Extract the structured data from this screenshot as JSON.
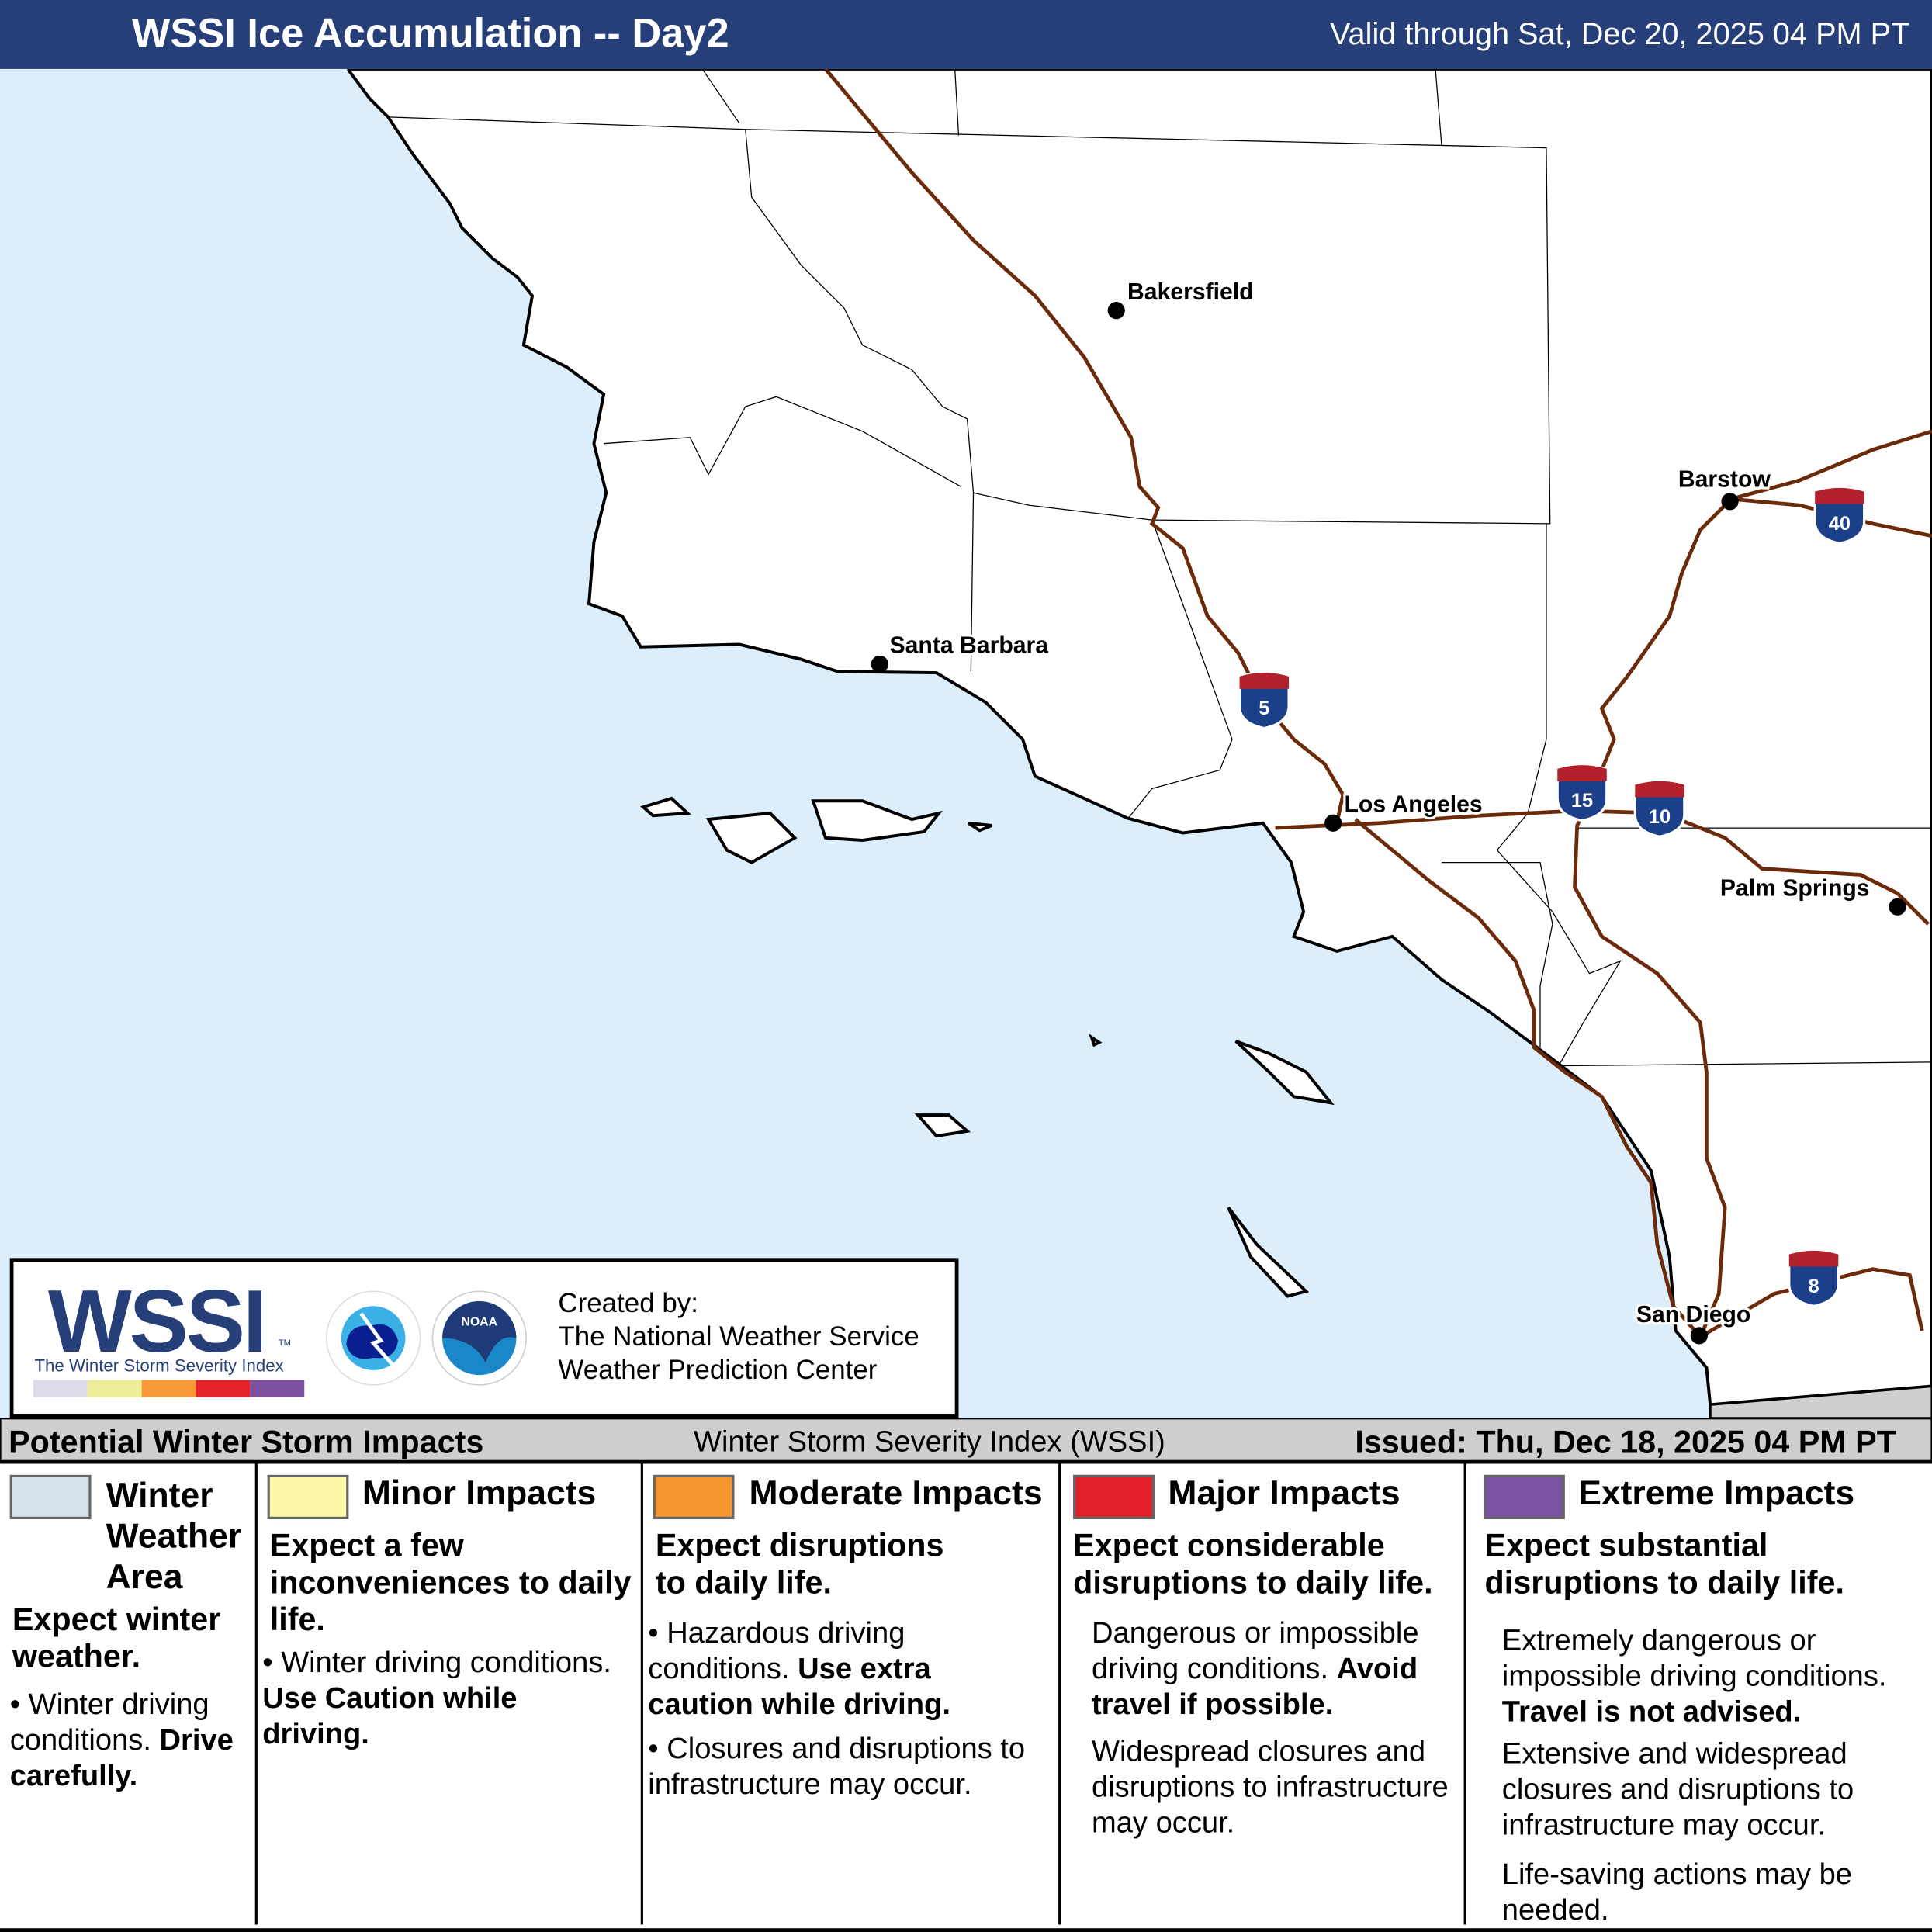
{
  "header": {
    "title": "WSSI Ice Accumulation -- Day2",
    "valid": "Valid through Sat, Dec 20, 2025 04 PM PT"
  },
  "map": {
    "colors": {
      "ocean": "#dcedfb",
      "land": "#ffffff",
      "mexico": "#cfcfcf",
      "interstate": "#6b2a0a"
    },
    "cities": [
      "Bakersfield",
      "Santa Barbara",
      "Los Angeles",
      "Barstow",
      "Palm Springs",
      "San Diego"
    ],
    "interstates": [
      "5",
      "15",
      "10",
      "40",
      "8"
    ]
  },
  "logo": {
    "wssi": "WSSI",
    "tm": "TM",
    "subtitle": "The Winter Storm Severity Index",
    "created": [
      "Created by:",
      "The National Weather Service",
      "Weather Prediction Center"
    ],
    "bar_colors": [
      "#dcdce8",
      "#eeee99",
      "#f79a36",
      "#e4222a",
      "#7b51a0"
    ]
  },
  "band": {
    "left": "Potential Winter Storm Impacts",
    "center": "Winter Storm Severity Index (WSSI)",
    "right": "Issued: Thu, Dec 18, 2025 04 PM PT"
  },
  "legend": [
    {
      "title": "Winter Weather Area",
      "color": "#d6e2ea",
      "lead": "Expect winter weather.",
      "b1": "Winter driving conditions.",
      "b1bold": "Drive carefully."
    },
    {
      "title": "Minor Impacts",
      "color": "#fbf7a6",
      "lead": "Expect a few inconveniences to daily life.",
      "b1": "Winter driving conditions.",
      "b1bold": "Use Caution while driving."
    },
    {
      "title": "Moderate Impacts",
      "color": "#f7962e",
      "lead": "Expect disruptions to daily life.",
      "b1": "Hazardous driving conditions.",
      "b1bold": "Use extra caution while driving.",
      "b2": "Closures and disruptions to infrastructure may occur."
    },
    {
      "title": "Major Impacts",
      "color": "#e4202a",
      "lead": "Expect considerable disruptions to daily life.",
      "b1": "Dangerous or impossible driving conditions.",
      "b1bold": "Avoid travel if possible.",
      "b2": "Widespread closures and disruptions to infrastructure may occur."
    },
    {
      "title": "Extreme Impacts",
      "color": "#7b53a3",
      "lead": "Expect substantial disruptions to daily life.",
      "b1": "Extremely dangerous or impossible driving conditions.",
      "b1bold": "Travel is not advised.",
      "b2": "Extensive and widespread closures and disruptions to infrastructure may occur.",
      "b3": "Life-saving actions may be needed."
    }
  ]
}
